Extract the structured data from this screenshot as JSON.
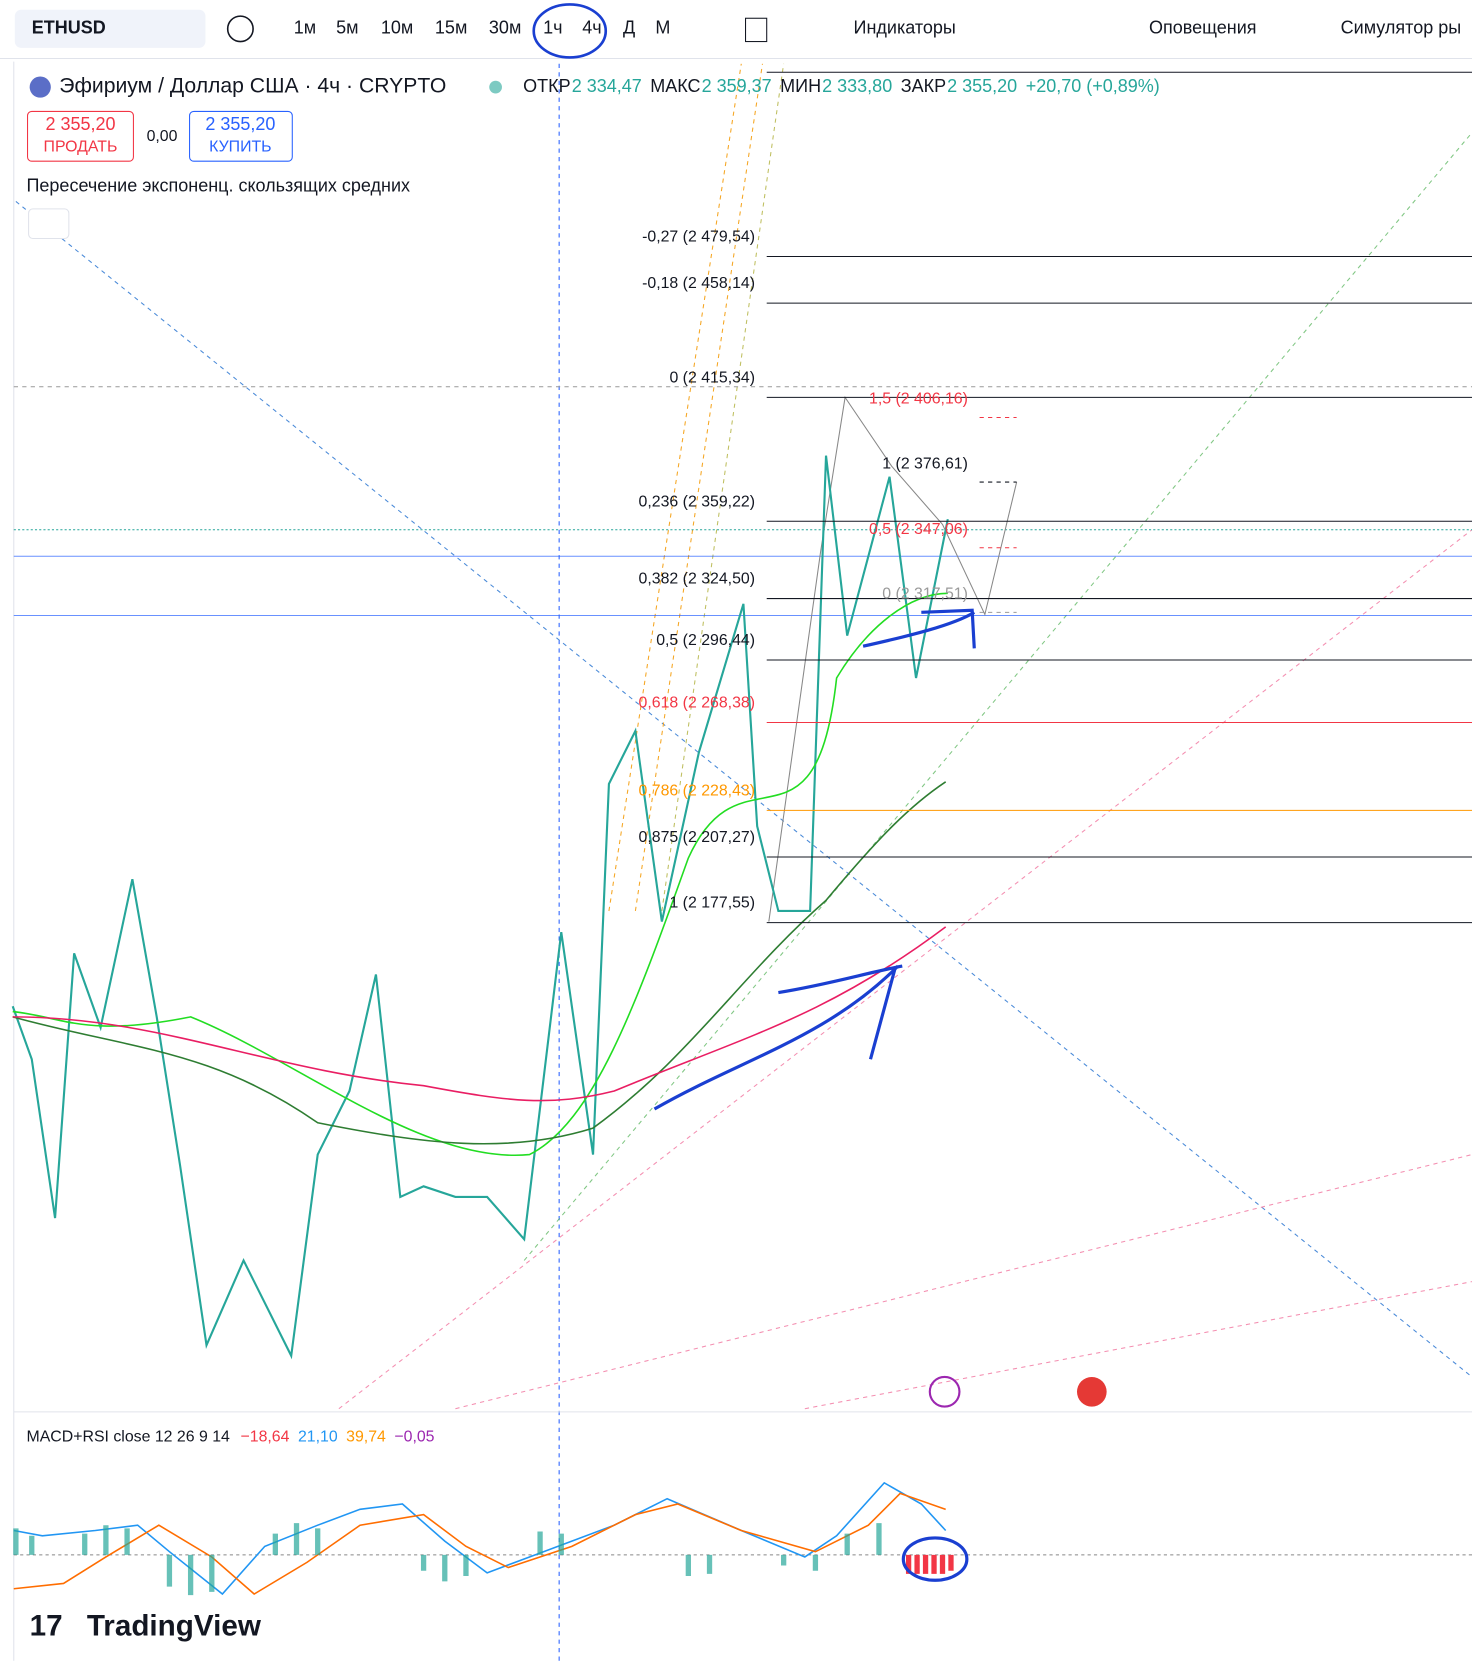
{
  "toolbar": {
    "symbol": "ETHUSD",
    "intervals": [
      "1м",
      "5м",
      "10м",
      "15м",
      "30м",
      "1ч",
      "4ч",
      "Д",
      "М"
    ],
    "indicators": "Индикаторы",
    "alerts": "Оповещения",
    "replay": "Симулятор ры"
  },
  "legend": {
    "title": "Эфириум / Доллар США · 4ч · CRYPTO",
    "open_label": "ОТКР",
    "open": "2 334,47",
    "high_label": "МАКС",
    "high": "2 359,37",
    "low_label": "МИН",
    "low": "2 333,80",
    "close_label": "ЗАКР",
    "close": "2 355,20",
    "change": "+20,70 (+0,89%)"
  },
  "trade": {
    "sell_price": "2 355,20",
    "sell": "ПРОДАТЬ",
    "spread": "0,00",
    "buy_price": "2 355,20",
    "buy": "КУПИТЬ"
  },
  "indicator": "Пересечение экспоненц. скользящих средних",
  "fib_levels": [
    "-0,27 (2 479,54)",
    "-0,18 (2 458,14)",
    "0 (2 415,34)",
    "0,236 (2 359,22)",
    "0,382 (2 324,50)",
    "0,5 (2 296,44)",
    "0,618 (2 268,38)",
    "0,786 (2 228,43)",
    "0,875 (2 207,27)",
    "1 (2 177,55)"
  ],
  "fib_extension": [
    "1,5 (2 406,16)",
    "1 (2 376,61)",
    "0,5 (2 347,06)",
    "0 (2 317,51)"
  ],
  "macd": {
    "title": "MACD+RSI close 12 26 9 14",
    "values": [
      "−18,64",
      "21,10",
      "39,74",
      "−0,05"
    ]
  },
  "logo": "TradingView"
}
